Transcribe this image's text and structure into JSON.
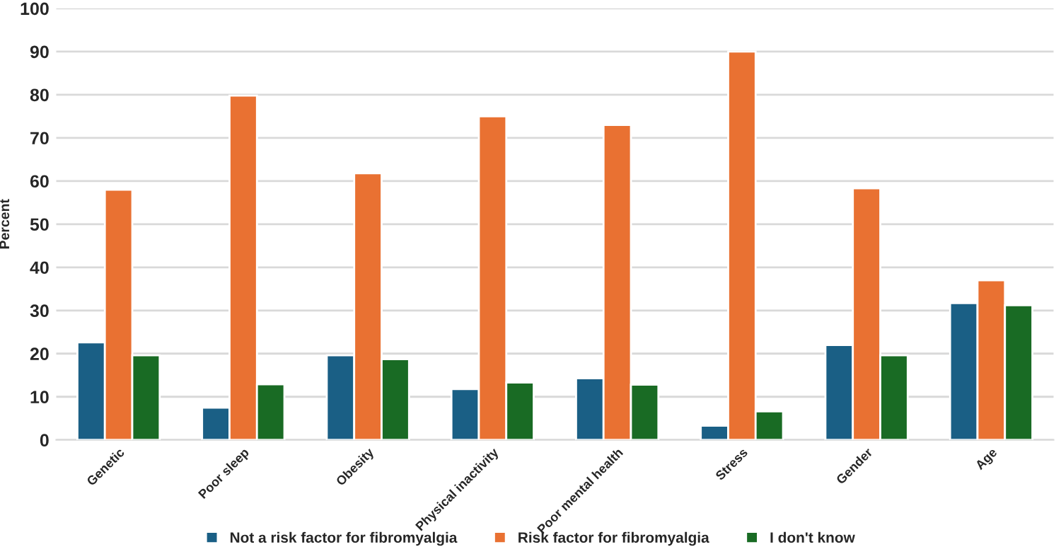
{
  "chart_data": {
    "type": "bar",
    "ylabel": "Percent",
    "categories": [
      "Genetic",
      "Poor sleep",
      "Obesity",
      "Physical inactivity",
      "Poor mental health",
      "Stress",
      "Gender",
      "Age"
    ],
    "series": [
      {
        "name": "Not a risk factor for fibromyalgia",
        "color": "#1a5f85",
        "values": [
          22.6,
          7.5,
          19.6,
          11.8,
          14.3,
          3.3,
          22.0,
          31.7
        ]
      },
      {
        "name": "Risk factor for fibromyalgia",
        "color": "#e97132",
        "values": [
          58.0,
          79.8,
          61.8,
          75.0,
          73.0,
          90.0,
          58.3,
          37.0
        ]
      },
      {
        "name": "I don't know",
        "color": "#196b24",
        "values": [
          19.6,
          12.9,
          18.7,
          13.3,
          12.8,
          6.6,
          19.6,
          31.2
        ]
      }
    ],
    "ylim": [
      0,
      100
    ],
    "yticks": [
      0,
      10,
      20,
      30,
      40,
      50,
      60,
      70,
      80,
      90,
      100
    ],
    "grid": "y",
    "legend": "bottom"
  }
}
